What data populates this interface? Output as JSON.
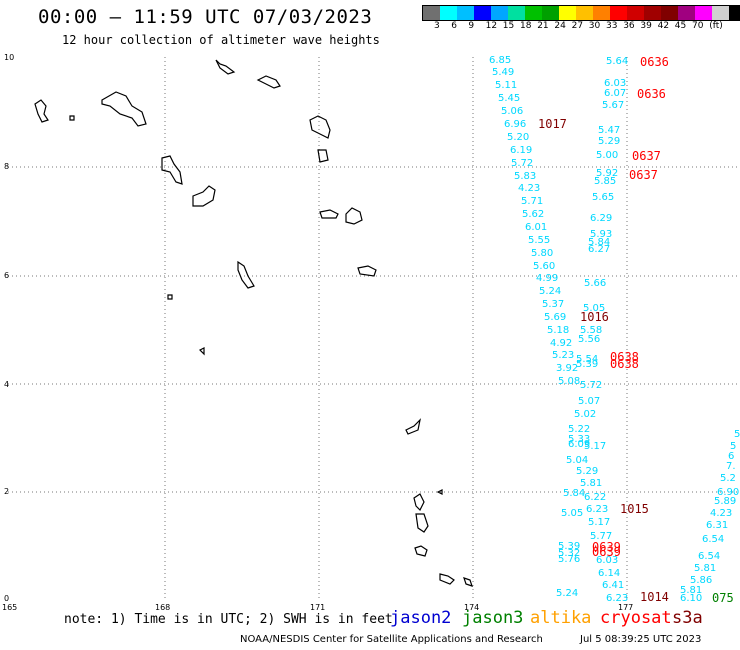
{
  "header": {
    "title": "00:00 – 11:59 UTC 07/03/2023",
    "subtitle": "12 hour collection of altimeter wave heights"
  },
  "colorbar": {
    "colors": [
      "#707070",
      "#00ffff",
      "#00bfff",
      "#0000ff",
      "#00a6ff",
      "#00e0a0",
      "#00c000",
      "#00a000",
      "#ffff00",
      "#ffc000",
      "#ff8000",
      "#ff0000",
      "#d00000",
      "#a00000",
      "#800000",
      "#a00080",
      "#ff00ff",
      "#d0d0d0",
      "#000000"
    ],
    "labels": [
      "3",
      "6",
      "9",
      "12",
      "15",
      "18",
      "21",
      "24",
      "27",
      "30",
      "33",
      "36",
      "39",
      "42",
      "45",
      "70",
      "(ft)"
    ]
  },
  "axes": {
    "x_ticks": [
      "165",
      "168",
      "171",
      "174",
      "177"
    ],
    "y_ticks": [
      "0",
      "2",
      "4",
      "6",
      "8",
      "10"
    ]
  },
  "colors": {
    "swh": "#00d8ff",
    "pressure_dark": "#800000",
    "pressure_red": "#ff0000",
    "green": "#008000"
  },
  "swh_labels": [
    "6.85",
    "5.49",
    "5.11",
    "5.45",
    "5.06",
    "6.96",
    "5.20",
    "6.19",
    "5.72",
    "5.83",
    "4.23",
    "5.71",
    "5.62",
    "6.01",
    "5.55",
    "5.80",
    "5.60",
    "4.99",
    "5.24",
    "5.37",
    "5.69",
    "5.18",
    "4.92",
    "5.23",
    "3.92",
    "5.08",
    "5.64",
    "6.03",
    "6.07",
    "5.67",
    "5.47",
    "5.29",
    "5.00",
    "5.92",
    "5.85",
    "5.65",
    "6.29",
    "5.93",
    "5.84",
    "6.27",
    "5.66",
    "5.05",
    "5.58",
    "5.56",
    "5.54",
    "5.39",
    "5.72",
    "5.07",
    "5.02",
    "5.22",
    "5.33",
    "6.09",
    "5.17",
    "5.04",
    "5.29",
    "5.81",
    "6.22",
    "6.23",
    "5.17",
    "5.77",
    "5.39",
    "5.32",
    "5.76",
    "6.03",
    "6.14",
    "6.41",
    "6.23",
    "5.84",
    "5.05",
    "5.24",
    "5.93",
    "5",
    "6",
    "7.",
    "5.2",
    "6.90",
    "5.89",
    "4.23",
    "6.31",
    "6.54",
    "6.54",
    "5.81",
    "5.86",
    "5.81",
    "6.10",
    "5.81",
    "5.59"
  ],
  "time_labels_dark": [
    "1017",
    "1016",
    "1015",
    "1014"
  ],
  "time_labels_red": [
    "0636",
    "0636",
    "0637",
    "0637",
    "0638",
    "0638",
    "0639",
    "0639"
  ],
  "time_labels_green": [
    "075"
  ],
  "note": "note: 1) Time is in UTC; 2) SWH is in feet",
  "satellites": [
    {
      "name": "jason2",
      "color": "#0000d0"
    },
    {
      "name": "jason3",
      "color": "#008000"
    },
    {
      "name": "altika",
      "color": "#ffa000"
    },
    {
      "name": "cryosat",
      "color": "#ff0000"
    },
    {
      "name": "s3a",
      "color": "#800000"
    }
  ],
  "credit": "NOAA/NESDIS Center for Satellite Applications and Research",
  "timestamp": "Jul  5 08:39:25 UTC 2023"
}
